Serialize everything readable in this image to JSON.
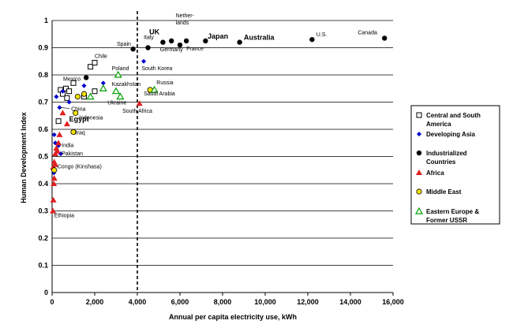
{
  "chart_data": {
    "type": "scatter",
    "title": "",
    "xlabel": "Annual  per  capita  electricity  use,  kWh",
    "ylabel": "Human  Development  Index",
    "xlim": [
      0,
      16000
    ],
    "ylim": [
      0,
      1
    ],
    "x_ticks": [
      "0",
      "2,000",
      "4,000",
      "6,000",
      "8,000",
      "10,000",
      "12,000",
      "14,000",
      "16,000"
    ],
    "y_ticks": [
      "0",
      "0.1",
      "0.2",
      "0.3",
      "0.4",
      "0.5",
      "0.6",
      "0.7",
      "0.8",
      "0.9",
      "1"
    ],
    "grid": "horizontal",
    "threshold_line_x": 4000,
    "legend_position": "right",
    "series": [
      {
        "name": "Central and South America",
        "marker": "square-open",
        "color": "#000000",
        "points": [
          {
            "x": 400,
            "y": 0.745
          },
          {
            "x": 500,
            "y": 0.73
          },
          {
            "x": 650,
            "y": 0.75
          },
          {
            "x": 800,
            "y": 0.74
          },
          {
            "x": 1000,
            "y": 0.77
          },
          {
            "x": 1800,
            "y": 0.83
          },
          {
            "x": 2000,
            "y": 0.845
          },
          {
            "x": 2000,
            "y": 0.74
          },
          {
            "x": 300,
            "y": 0.63
          },
          {
            "x": 700,
            "y": 0.715
          },
          {
            "x": 1500,
            "y": 0.72
          }
        ]
      },
      {
        "name": "Developing Asia",
        "marker": "diamond",
        "color": "#0000cc",
        "points": [
          {
            "x": 4300,
            "y": 0.85
          },
          {
            "x": 200,
            "y": 0.72
          },
          {
            "x": 350,
            "y": 0.68
          },
          {
            "x": 500,
            "y": 0.74
          },
          {
            "x": 800,
            "y": 0.7
          },
          {
            "x": 1500,
            "y": 0.76
          },
          {
            "x": 2400,
            "y": 0.77
          },
          {
            "x": 100,
            "y": 0.58
          },
          {
            "x": 150,
            "y": 0.55
          },
          {
            "x": 300,
            "y": 0.54
          },
          {
            "x": 400,
            "y": 0.51
          },
          {
            "x": 80,
            "y": 0.44
          }
        ]
      },
      {
        "name": "Industrialized Countries",
        "marker": "circle",
        "color": "#000000",
        "points": [
          {
            "x": 3800,
            "y": 0.895
          },
          {
            "x": 4500,
            "y": 0.9
          },
          {
            "x": 5200,
            "y": 0.92
          },
          {
            "x": 5600,
            "y": 0.925
          },
          {
            "x": 6000,
            "y": 0.91
          },
          {
            "x": 6300,
            "y": 0.925
          },
          {
            "x": 7200,
            "y": 0.925
          },
          {
            "x": 8800,
            "y": 0.92
          },
          {
            "x": 12200,
            "y": 0.93
          },
          {
            "x": 15600,
            "y": 0.935
          },
          {
            "x": 1600,
            "y": 0.79
          }
        ]
      },
      {
        "name": "Africa",
        "marker": "triangle",
        "color": "#e02020",
        "points": [
          {
            "x": 4100,
            "y": 0.695
          },
          {
            "x": 700,
            "y": 0.62
          },
          {
            "x": 500,
            "y": 0.66
          },
          {
            "x": 350,
            "y": 0.58
          },
          {
            "x": 300,
            "y": 0.55
          },
          {
            "x": 200,
            "y": 0.53
          },
          {
            "x": 150,
            "y": 0.51
          },
          {
            "x": 250,
            "y": 0.52
          },
          {
            "x": 100,
            "y": 0.48
          },
          {
            "x": 150,
            "y": 0.47
          },
          {
            "x": 50,
            "y": 0.46
          },
          {
            "x": 100,
            "y": 0.42
          },
          {
            "x": 80,
            "y": 0.4
          },
          {
            "x": 60,
            "y": 0.34
          },
          {
            "x": 40,
            "y": 0.3
          }
        ]
      },
      {
        "name": "Middle East",
        "marker": "circle",
        "color": "#f2e000",
        "points": [
          {
            "x": 4600,
            "y": 0.745
          },
          {
            "x": 1200,
            "y": 0.72
          },
          {
            "x": 1500,
            "y": 0.73
          },
          {
            "x": 1100,
            "y": 0.66
          },
          {
            "x": 1000,
            "y": 0.59
          },
          {
            "x": 100,
            "y": 0.45
          }
        ]
      },
      {
        "name": "Eastern Europe & Former USSR",
        "marker": "triangle-open",
        "color": "#00a000",
        "points": [
          {
            "x": 3100,
            "y": 0.8
          },
          {
            "x": 4800,
            "y": 0.745
          },
          {
            "x": 3000,
            "y": 0.74
          },
          {
            "x": 3200,
            "y": 0.72
          },
          {
            "x": 2400,
            "y": 0.75
          },
          {
            "x": 1800,
            "y": 0.72
          }
        ]
      }
    ],
    "annotations": [
      {
        "text": "Spain",
        "x": 3700,
        "y": 0.895,
        "style": "small",
        "anchor": "end",
        "dy": -4
      },
      {
        "text": "Italy",
        "x": 4300,
        "y": 0.9,
        "style": "small",
        "anchor": "start",
        "dy": -11
      },
      {
        "text": "UK",
        "x": 4800,
        "y": 0.92,
        "style": "big",
        "anchor": "middle",
        "dy": -10
      },
      {
        "text": "Nether-",
        "x": 5800,
        "y": 0.925,
        "style": "small",
        "anchor": "start",
        "dy": -30
      },
      {
        "text": "lands",
        "x": 5800,
        "y": 0.925,
        "style": "small",
        "anchor": "start",
        "dy": -21
      },
      {
        "text": "Germany",
        "x": 5600,
        "y": 0.91,
        "style": "small",
        "anchor": "middle",
        "dy": 8
      },
      {
        "text": "France",
        "x": 6300,
        "y": 0.925,
        "style": "small",
        "anchor": "start",
        "dy": 12
      },
      {
        "text": "Japan",
        "x": 7300,
        "y": 0.925,
        "style": "big",
        "anchor": "start",
        "dy": -3
      },
      {
        "text": "Australia",
        "x": 9000,
        "y": 0.92,
        "style": "big",
        "anchor": "start",
        "dy": -3
      },
      {
        "text": "U.S.",
        "x": 12400,
        "y": 0.93,
        "style": "small",
        "anchor": "start",
        "dy": -4
      },
      {
        "text": "Canada",
        "x": 14800,
        "y": 0.935,
        "style": "small",
        "anchor": "middle",
        "dy": -5
      },
      {
        "text": "Chile",
        "x": 2000,
        "y": 0.845,
        "style": "small",
        "anchor": "start",
        "dy": -6
      },
      {
        "text": "Mexico",
        "x": 0,
        "y": 0.77,
        "style": "small",
        "anchor": "start",
        "dy": -3,
        "dx": 14
      },
      {
        "text": "Poland",
        "x": 2800,
        "y": 0.8,
        "style": "small",
        "anchor": "start",
        "dy": -6
      },
      {
        "text": "South Korea",
        "x": 4200,
        "y": 0.85,
        "style": "small",
        "anchor": "start",
        "dy": 11
      },
      {
        "text": "Kazakhstan",
        "x": 2800,
        "y": 0.76,
        "style": "small",
        "anchor": "start",
        "dy": 0
      },
      {
        "text": "Russia",
        "x": 4900,
        "y": 0.745,
        "style": "small",
        "anchor": "start",
        "dy": -7
      },
      {
        "text": "Saudi Arabia",
        "x": 4300,
        "y": 0.745,
        "style": "small",
        "anchor": "start",
        "dy": 7
      },
      {
        "text": "Ukraine",
        "x": 2600,
        "y": 0.72,
        "style": "small",
        "anchor": "start",
        "dy": 10
      },
      {
        "text": "China",
        "x": 300,
        "y": 0.68,
        "style": "small",
        "anchor": "start",
        "dy": 4,
        "dx": 16
      },
      {
        "text": "Indonesia",
        "x": 300,
        "y": 0.68,
        "style": "small",
        "anchor": "start",
        "dy": 15,
        "dx": 26
      },
      {
        "text": "South Africa",
        "x": 4000,
        "y": 0.695,
        "style": "small",
        "anchor": "middle",
        "dy": 12
      },
      {
        "text": "Egypt",
        "x": 800,
        "y": 0.62,
        "style": "big",
        "anchor": "start",
        "dy": -3
      },
      {
        "text": "Iraq",
        "x": 1100,
        "y": 0.59,
        "style": "small",
        "anchor": "start",
        "dy": 3
      },
      {
        "text": "India",
        "x": 450,
        "y": 0.54,
        "style": "small",
        "anchor": "start",
        "dy": 2
      },
      {
        "text": "Pakistan",
        "x": 450,
        "y": 0.51,
        "style": "small",
        "anchor": "start",
        "dy": 2
      },
      {
        "text": "Congo (Kinshasa)",
        "x": 250,
        "y": 0.465,
        "style": "small",
        "anchor": "start",
        "dy": 3
      },
      {
        "text": "Ethiopia",
        "x": 100,
        "y": 0.3,
        "style": "small",
        "anchor": "start",
        "dy": 8
      }
    ]
  }
}
